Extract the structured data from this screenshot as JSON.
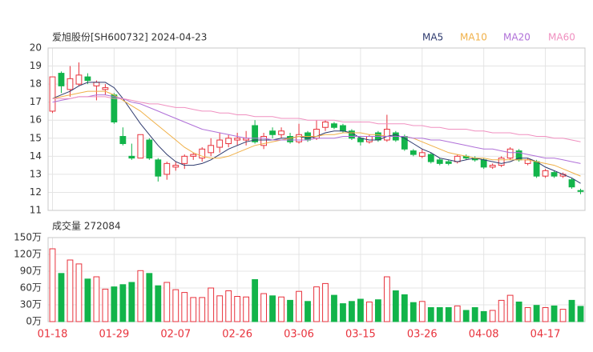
{
  "chart_data": {
    "type": "candlestick",
    "title": "爱旭股份[SH600732] 2024-04-23",
    "volume_title": "成交量 272084",
    "categories": [
      "01-18",
      null,
      null,
      null,
      null,
      null,
      null,
      "01-29",
      null,
      null,
      null,
      null,
      null,
      null,
      "02-07",
      null,
      null,
      null,
      null,
      null,
      null,
      "02-26",
      null,
      null,
      null,
      null,
      null,
      null,
      "03-06",
      null,
      null,
      null,
      null,
      null,
      null,
      "03-15",
      null,
      null,
      null,
      null,
      null,
      null,
      "03-26",
      null,
      null,
      null,
      null,
      null,
      null,
      "04-08",
      null,
      null,
      null,
      null,
      null,
      null,
      "04-17",
      null,
      null,
      null,
      null
    ],
    "open": [
      16.5,
      18.6,
      17.7,
      18.0,
      18.4,
      17.9,
      17.7,
      17.4,
      15.1,
      14.0,
      13.9,
      14.9,
      13.8,
      13.0,
      13.4,
      13.6,
      14.0,
      13.9,
      14.2,
      14.5,
      14.7,
      14.9,
      14.9,
      15.7,
      14.6,
      15.4,
      15.2,
      15.1,
      14.8,
      15.3,
      15.0,
      15.6,
      15.8,
      15.7,
      15.4,
      15.0,
      14.8,
      15.3,
      14.9,
      15.3,
      15.1,
      14.3,
      14.0,
      14.1,
      13.8,
      13.7,
      13.7,
      14.0,
      13.9,
      13.8,
      13.4,
      13.5,
      13.9,
      14.3,
      13.6,
      13.7,
      12.9,
      13.1,
      12.9,
      12.7,
      12.1
    ],
    "high": [
      18.4,
      18.7,
      19.0,
      19.2,
      18.6,
      18.2,
      18.0,
      17.5,
      15.6,
      14.7,
      15.2,
      15.0,
      13.9,
      13.7,
      13.7,
      14.1,
      14.2,
      14.5,
      15.0,
      15.3,
      15.2,
      15.3,
      15.4,
      16.0,
      15.3,
      15.6,
      15.6,
      15.3,
      15.8,
      15.4,
      16.0,
      16.0,
      15.9,
      15.8,
      15.5,
      15.1,
      15.2,
      15.4,
      16.3,
      15.4,
      15.2,
      14.4,
      14.4,
      14.2,
      13.9,
      13.8,
      14.1,
      14.1,
      14.0,
      13.9,
      13.6,
      14.0,
      14.5,
      14.4,
      13.9,
      13.8,
      13.3,
      13.2,
      13.1,
      12.8,
      12.2
    ],
    "low": [
      16.4,
      17.5,
      17.3,
      17.9,
      18.0,
      17.1,
      17.4,
      15.8,
      14.6,
      13.8,
      13.9,
      13.8,
      12.6,
      12.7,
      13.2,
      13.3,
      13.8,
      13.7,
      14.0,
      14.2,
      14.5,
      14.6,
      14.6,
      14.7,
      14.4,
      15.0,
      15.0,
      14.7,
      14.7,
      14.8,
      14.9,
      15.4,
      15.5,
      15.3,
      14.9,
      14.6,
      14.7,
      14.8,
      14.8,
      14.8,
      14.3,
      14.0,
      13.9,
      13.6,
      13.5,
      13.5,
      13.6,
      13.8,
      13.7,
      13.3,
      13.3,
      13.4,
      13.8,
      13.7,
      13.5,
      12.8,
      12.8,
      12.8,
      12.8,
      12.2,
      11.9
    ],
    "close": [
      18.4,
      17.9,
      18.3,
      18.5,
      18.2,
      18.1,
      17.8,
      15.9,
      14.7,
      13.9,
      15.2,
      13.9,
      12.9,
      13.6,
      13.5,
      14.0,
      14.1,
      14.4,
      14.6,
      14.9,
      15.0,
      15.0,
      15.0,
      14.8,
      15.1,
      15.2,
      15.4,
      14.8,
      15.2,
      14.9,
      15.5,
      15.9,
      15.6,
      15.4,
      15.0,
      14.8,
      15.1,
      14.9,
      15.5,
      14.9,
      14.4,
      14.1,
      14.2,
      13.7,
      13.6,
      13.6,
      14.0,
      13.9,
      13.8,
      13.4,
      13.5,
      13.9,
      14.4,
      13.8,
      13.8,
      12.9,
      13.2,
      12.9,
      13.0,
      12.3,
      12.05
    ],
    "volume": [
      130,
      86,
      110,
      103,
      76,
      80,
      58,
      62,
      66,
      70,
      91,
      86,
      64,
      70,
      57,
      52,
      43,
      43,
      60,
      46,
      55,
      45,
      44,
      75,
      50,
      46,
      44,
      38,
      54,
      36,
      62,
      68,
      47,
      32,
      36,
      40,
      35,
      39,
      80,
      55,
      48,
      34,
      36,
      25,
      25,
      25,
      28,
      20,
      25,
      18,
      20,
      38,
      47,
      35,
      25,
      29,
      25,
      28,
      22,
      38,
      27.2084
    ],
    "up_color": "#e8323c",
    "down_color": "#12b44a",
    "series": [
      {
        "name": "MA5",
        "color": "#2e3a6e",
        "values": [
          17.2,
          17.4,
          17.6,
          17.9,
          18.1,
          18.1,
          18.1,
          17.8,
          17.2,
          16.5,
          15.8,
          15.2,
          14.6,
          14.1,
          13.7,
          13.5,
          13.5,
          13.6,
          13.8,
          14.1,
          14.4,
          14.6,
          14.8,
          14.9,
          14.9,
          14.9,
          15.0,
          15.0,
          15.1,
          15.0,
          15.1,
          15.3,
          15.4,
          15.4,
          15.3,
          15.0,
          14.9,
          14.9,
          15.1,
          15.2,
          15.0,
          14.7,
          14.4,
          14.2,
          13.9,
          13.8,
          13.7,
          13.8,
          13.9,
          13.8,
          13.7,
          13.6,
          13.7,
          13.9,
          13.9,
          13.7,
          13.4,
          13.2,
          13.0,
          12.8,
          12.5
        ]
      },
      {
        "name": "MA10",
        "color": "#f0b048",
        "values": [
          17.2,
          17.3,
          17.4,
          17.5,
          17.6,
          17.6,
          17.6,
          17.4,
          17.1,
          16.8,
          16.5,
          16.1,
          15.7,
          15.3,
          14.9,
          14.5,
          14.2,
          14.0,
          13.9,
          13.9,
          14.0,
          14.2,
          14.4,
          14.6,
          14.7,
          14.8,
          14.9,
          15.0,
          15.1,
          15.1,
          15.1,
          15.2,
          15.2,
          15.3,
          15.3,
          15.3,
          15.2,
          15.2,
          15.1,
          15.1,
          15.1,
          15.0,
          14.8,
          14.6,
          14.4,
          14.2,
          14.1,
          14.0,
          13.9,
          13.9,
          13.8,
          13.8,
          13.8,
          13.8,
          13.8,
          13.7,
          13.6,
          13.5,
          13.3,
          13.1,
          12.9
        ]
      },
      {
        "name": "MA20",
        "color": "#b070d8",
        "values": [
          17.0,
          17.1,
          17.2,
          17.3,
          17.3,
          17.4,
          17.4,
          17.3,
          17.2,
          17.0,
          16.9,
          16.7,
          16.5,
          16.3,
          16.1,
          15.9,
          15.7,
          15.5,
          15.4,
          15.3,
          15.2,
          15.1,
          15.0,
          15.0,
          15.0,
          14.9,
          14.9,
          14.9,
          14.9,
          14.9,
          15.0,
          15.0,
          15.0,
          15.1,
          15.1,
          15.1,
          15.1,
          15.1,
          15.1,
          15.1,
          15.1,
          15.0,
          15.0,
          14.9,
          14.9,
          14.8,
          14.7,
          14.6,
          14.5,
          14.4,
          14.4,
          14.3,
          14.2,
          14.2,
          14.1,
          14.0,
          13.9,
          13.9,
          13.8,
          13.7,
          13.6
        ]
      },
      {
        "name": "MA60",
        "color": "#f090c0",
        "values": [
          17.2,
          17.2,
          17.2,
          17.3,
          17.3,
          17.3,
          17.3,
          17.2,
          17.2,
          17.1,
          17.0,
          16.9,
          16.9,
          16.8,
          16.7,
          16.7,
          16.6,
          16.5,
          16.5,
          16.4,
          16.4,
          16.3,
          16.3,
          16.2,
          16.2,
          16.2,
          16.1,
          16.1,
          16.1,
          16.0,
          16.0,
          16.0,
          16.0,
          15.9,
          15.9,
          15.9,
          15.9,
          15.8,
          15.8,
          15.8,
          15.8,
          15.7,
          15.7,
          15.6,
          15.6,
          15.5,
          15.5,
          15.5,
          15.4,
          15.4,
          15.3,
          15.3,
          15.3,
          15.2,
          15.2,
          15.1,
          15.1,
          15.0,
          15.0,
          14.9,
          14.8
        ]
      }
    ],
    "ylim": [
      11,
      20
    ],
    "yticks": [
      11,
      12,
      13,
      14,
      15,
      16,
      17,
      18,
      19,
      20
    ],
    "y2lim": [
      0,
      150
    ],
    "y2ticks": [
      {
        "value": 0,
        "label": "0万"
      },
      {
        "value": 30,
        "label": "30万"
      },
      {
        "value": 60,
        "label": "60万"
      },
      {
        "value": 90,
        "label": "90万"
      },
      {
        "value": 120,
        "label": "120万"
      },
      {
        "value": 150,
        "label": "150万"
      }
    ],
    "grid": true
  }
}
